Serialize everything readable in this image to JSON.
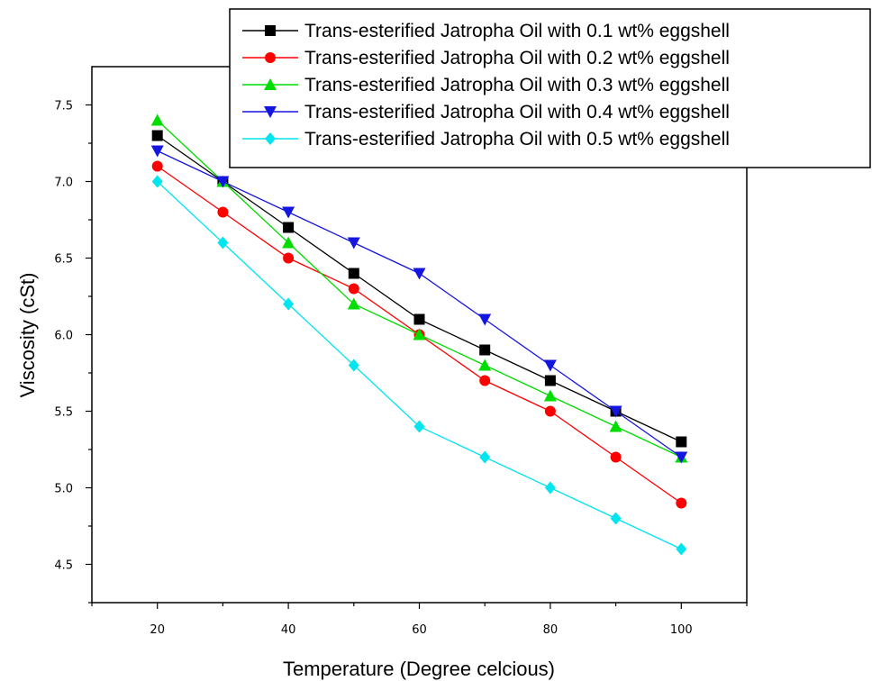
{
  "chart_data": {
    "type": "line",
    "title": "",
    "xlabel": "Temperature (Degree celcious)",
    "ylabel": "Viscosity (cSt)",
    "xlim": [
      10,
      110
    ],
    "ylim": [
      4.25,
      7.75
    ],
    "x_ticks": [
      20,
      40,
      60,
      80,
      100
    ],
    "y_ticks": [
      4.5,
      5.0,
      5.5,
      6.0,
      6.5,
      7.0,
      7.5
    ],
    "x_tick_labels": [
      "20",
      "40",
      "60",
      "80",
      "100"
    ],
    "y_tick_labels": [
      "4.5",
      "5.0",
      "5.5",
      "6.0",
      "6.5",
      "7.0",
      "7.5"
    ],
    "grid": false,
    "legend_position": "top-right",
    "x": [
      20,
      30,
      40,
      50,
      60,
      70,
      80,
      90,
      100
    ],
    "series": [
      {
        "name": "Trans-esterified Jatropha Oil with 0.1 wt% eggshell",
        "color": "#000000",
        "marker": "square",
        "values": [
          7.3,
          7.0,
          6.7,
          6.4,
          6.1,
          5.9,
          5.7,
          5.5,
          5.3
        ]
      },
      {
        "name": "Trans-esterified Jatropha Oil with 0.2 wt% eggshell",
        "color": "#ff0000",
        "marker": "circle",
        "values": [
          7.1,
          6.8,
          6.5,
          6.3,
          6.0,
          5.7,
          5.5,
          5.2,
          4.9
        ]
      },
      {
        "name": "Trans-esterified Jatropha Oil with 0.3 wt% eggshell",
        "color": "#00dd00",
        "marker": "triangle-up",
        "values": [
          7.4,
          7.0,
          6.6,
          6.2,
          6.0,
          5.8,
          5.6,
          5.4,
          5.2
        ]
      },
      {
        "name": "Trans-esterified Jatropha Oil with 0.4 wt% eggshell",
        "color": "#1515e0",
        "marker": "triangle-down",
        "values": [
          7.2,
          7.0,
          6.8,
          6.6,
          6.4,
          6.1,
          5.8,
          5.5,
          5.2
        ]
      },
      {
        "name": "Trans-esterified Jatropha Oil with 0.5 wt% eggshell",
        "color": "#00e5ee",
        "marker": "diamond",
        "values": [
          7.0,
          6.6,
          6.2,
          5.8,
          5.4,
          5.2,
          5.0,
          4.8,
          4.6
        ]
      }
    ]
  }
}
